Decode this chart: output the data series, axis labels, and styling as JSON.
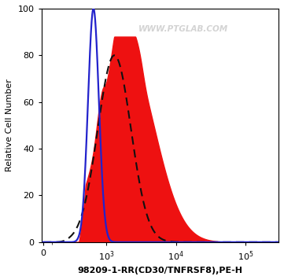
{
  "title": "98209-1-RR(CD30/TNFRSF8),PE-H",
  "ylabel": "Relative Cell Number",
  "watermark": "WWW.PTGLAB.COM",
  "ylim": [
    0,
    100
  ],
  "yticks": [
    0,
    20,
    40,
    60,
    80,
    100
  ],
  "blue_line_color": "#2222cc",
  "red_fill_color": "#ee1111",
  "dashed_line_color": "#111111",
  "background_color": "#ffffff",
  "linthresh": 300,
  "linscale": 0.35
}
